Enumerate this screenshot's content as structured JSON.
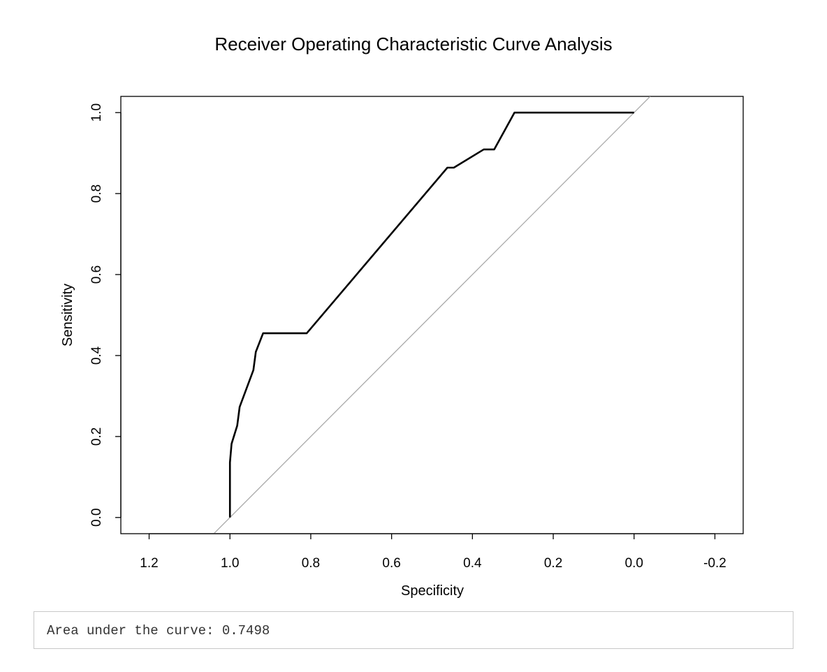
{
  "chart_data": {
    "type": "line",
    "title": "Receiver Operating Characteristic Curve Analysis",
    "xlabel": "Specificity",
    "ylabel": "Sensitivity",
    "x_reversed": true,
    "xlim": [
      1.27,
      -0.27
    ],
    "ylim": [
      -0.04,
      1.04
    ],
    "x_ticks": [
      1.2,
      1.0,
      0.8,
      0.6,
      0.4,
      0.2,
      0.0,
      -0.2
    ],
    "x_tick_labels": [
      "1.2",
      "1.0",
      "0.8",
      "0.6",
      "0.4",
      "0.2",
      "0.0",
      "-0.2"
    ],
    "y_ticks": [
      0.0,
      0.2,
      0.4,
      0.6,
      0.8,
      1.0
    ],
    "y_tick_labels": [
      "0.0",
      "0.2",
      "0.4",
      "0.6",
      "0.8",
      "1.0"
    ],
    "grid": false,
    "series": [
      {
        "color": "#000000",
        "points": [
          [
            1.0,
            0.0
          ],
          [
            1.0,
            0.136
          ],
          [
            0.996,
            0.182
          ],
          [
            0.982,
            0.227
          ],
          [
            0.976,
            0.273
          ],
          [
            0.942,
            0.364
          ],
          [
            0.936,
            0.409
          ],
          [
            0.918,
            0.455
          ],
          [
            0.81,
            0.455
          ],
          [
            0.462,
            0.864
          ],
          [
            0.446,
            0.864
          ],
          [
            0.372,
            0.909
          ],
          [
            0.346,
            0.909
          ],
          [
            0.296,
            1.0
          ],
          [
            0.0,
            1.0
          ]
        ]
      }
    ],
    "reference_line": {
      "color": "#aaaaaa",
      "from": [
        1.04,
        -0.04
      ],
      "to": [
        -0.04,
        1.04
      ]
    }
  },
  "output": {
    "text": "Area under the curve: 0.7498"
  }
}
